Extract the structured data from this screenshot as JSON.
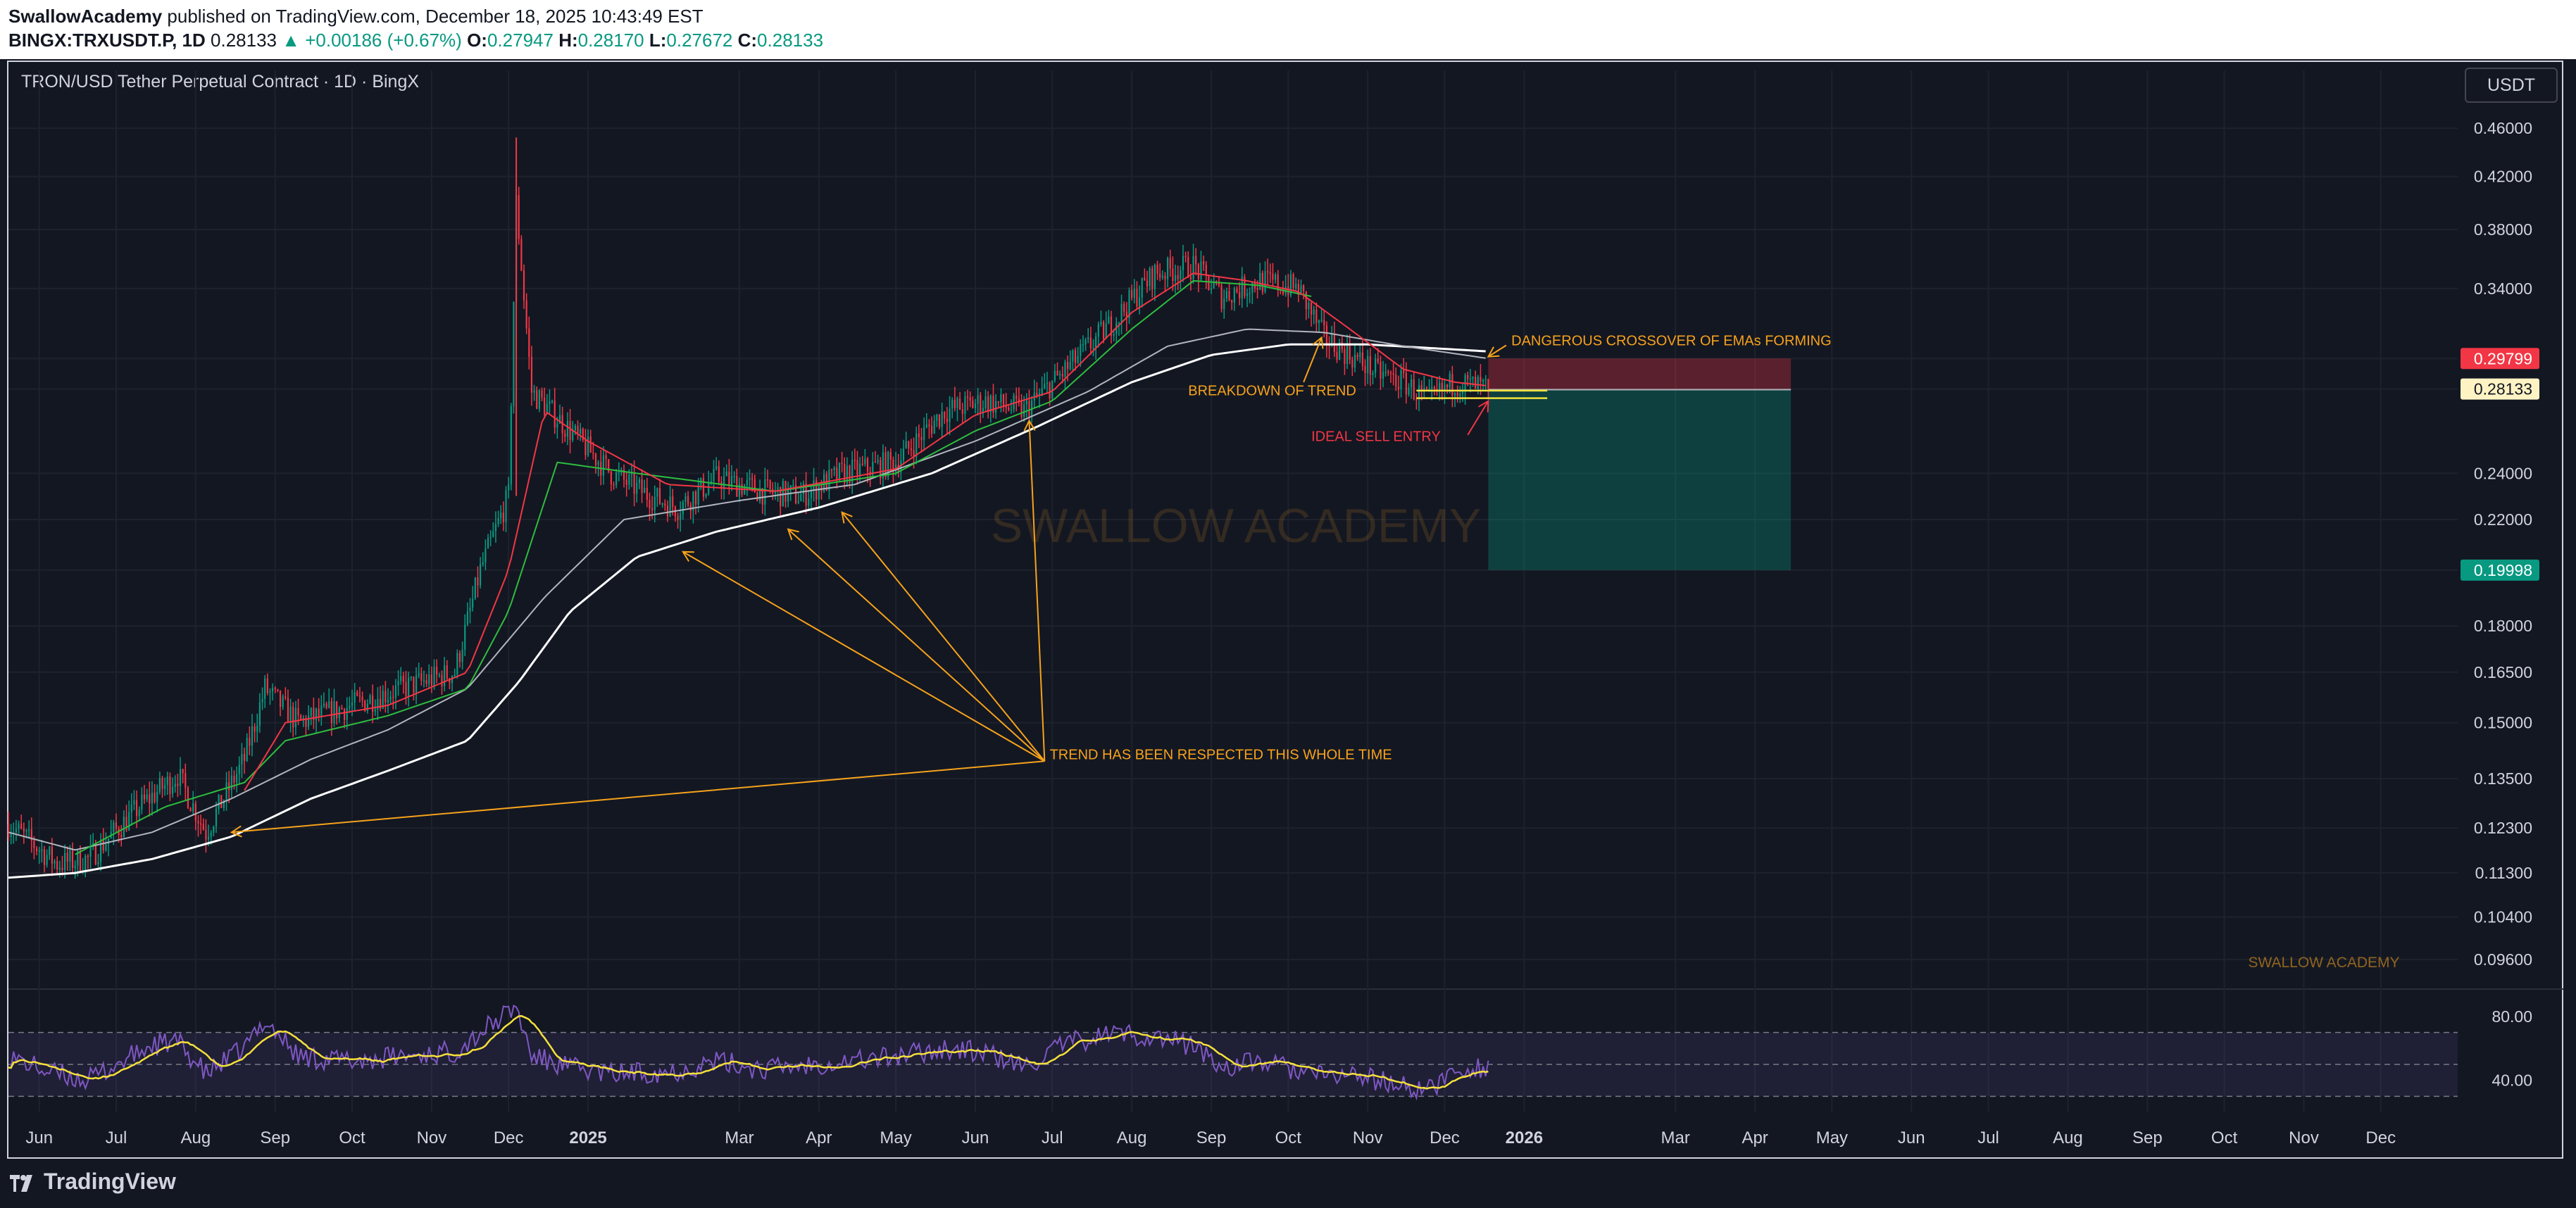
{
  "header": {
    "publisher": "SwallowAcademy",
    "published_text": " published on TradingView.com, December 18, 2025 10:43:49 EST",
    "symbol": "BINGX:TRXUSDT.P, 1D",
    "last": "0.28133",
    "change": "+0.00186 (+0.67%)",
    "o_label": "O:",
    "o": "0.27947",
    "h_label": "H:",
    "h": "0.28170",
    "l_label": "L:",
    "l": "0.27672",
    "c_label": "C:",
    "c": "0.28133"
  },
  "chart_title": "TRON/USD Tether Perpetual Contract · 1D · BingX",
  "currency_button": "USDT",
  "watermark": "SWALLOW ACADEMY",
  "watermark_small": "SWALLOW ACADEMY",
  "footer_brand": "TradingView",
  "colors": {
    "background": "#131722",
    "up": "#089981",
    "down": "#f23645",
    "annotation": "#f7a21b",
    "ema_fast": "#f23645",
    "ema_mid": "#2ebd3f",
    "ema_slow": "#ffffff",
    "rsi": "#7e57c2",
    "rsi_ma": "#f5e03c"
  },
  "chart_data": {
    "type": "candlestick",
    "scale": "log",
    "ylim": [
      0.092,
      0.48
    ],
    "xlim": [
      "2024-05-20",
      "2026-12-31"
    ],
    "y_ticks": [
      "0.46000",
      "0.42000",
      "0.38000",
      "0.34000",
      "0.29799",
      "0.28133",
      "0.24000",
      "0.22000",
      "0.19998",
      "0.18000",
      "0.16500",
      "0.15000",
      "0.13500",
      "0.12300",
      "0.11300",
      "0.10400",
      "0.09600"
    ],
    "x_ticks": [
      {
        "date": "2024-06-01",
        "label": "Jun"
      },
      {
        "date": "2024-07-01",
        "label": "Jul"
      },
      {
        "date": "2024-08-01",
        "label": "Aug"
      },
      {
        "date": "2024-09-01",
        "label": "Sep"
      },
      {
        "date": "2024-10-01",
        "label": "Oct"
      },
      {
        "date": "2024-11-01",
        "label": "Nov"
      },
      {
        "date": "2024-12-01",
        "label": "Dec"
      },
      {
        "date": "2025-01-01",
        "label": "2025"
      },
      {
        "date": "2025-03-01",
        "label": "Mar"
      },
      {
        "date": "2025-04-01",
        "label": "Apr"
      },
      {
        "date": "2025-05-01",
        "label": "May"
      },
      {
        "date": "2025-06-01",
        "label": "Jun"
      },
      {
        "date": "2025-07-01",
        "label": "Jul"
      },
      {
        "date": "2025-08-01",
        "label": "Aug"
      },
      {
        "date": "2025-09-01",
        "label": "Sep"
      },
      {
        "date": "2025-10-01",
        "label": "Oct"
      },
      {
        "date": "2025-11-01",
        "label": "Nov"
      },
      {
        "date": "2025-12-01",
        "label": "Dec"
      },
      {
        "date": "2026-01-01",
        "label": "2026"
      },
      {
        "date": "2026-03-01",
        "label": "Mar"
      },
      {
        "date": "2026-04-01",
        "label": "Apr"
      },
      {
        "date": "2026-05-01",
        "label": "May"
      },
      {
        "date": "2026-06-01",
        "label": "Jun"
      },
      {
        "date": "2026-07-01",
        "label": "Jul"
      },
      {
        "date": "2026-08-01",
        "label": "Aug"
      },
      {
        "date": "2026-09-01",
        "label": "Sep"
      },
      {
        "date": "2026-10-01",
        "label": "Oct"
      },
      {
        "date": "2026-11-01",
        "label": "Nov"
      },
      {
        "date": "2026-12-01",
        "label": "Dec"
      }
    ],
    "price_anchors": [
      [
        "2024-05-20",
        0.124
      ],
      [
        "2024-06-08",
        0.115
      ],
      [
        "2024-06-20",
        0.116
      ],
      [
        "2024-07-10",
        0.128
      ],
      [
        "2024-07-25",
        0.136
      ],
      [
        "2024-08-05",
        0.122
      ],
      [
        "2024-08-20",
        0.14
      ],
      [
        "2024-08-28",
        0.16
      ],
      [
        "2024-09-10",
        0.15
      ],
      [
        "2024-10-01",
        0.155
      ],
      [
        "2024-10-20",
        0.16
      ],
      [
        "2024-11-10",
        0.165
      ],
      [
        "2024-11-20",
        0.2
      ],
      [
        "2024-12-01",
        0.23
      ],
      [
        "2024-12-04",
        0.4
      ],
      [
        "2024-12-10",
        0.28
      ],
      [
        "2024-12-25",
        0.26
      ],
      [
        "2025-01-10",
        0.24
      ],
      [
        "2025-01-25",
        0.23
      ],
      [
        "2025-02-05",
        0.225
      ],
      [
        "2025-02-20",
        0.238
      ],
      [
        "2025-03-10",
        0.232
      ],
      [
        "2025-03-25",
        0.23
      ],
      [
        "2025-04-10",
        0.24
      ],
      [
        "2025-05-01",
        0.245
      ],
      [
        "2025-05-20",
        0.27
      ],
      [
        "2025-06-05",
        0.275
      ],
      [
        "2025-06-20",
        0.27
      ],
      [
        "2025-07-05",
        0.29
      ],
      [
        "2025-07-25",
        0.32
      ],
      [
        "2025-08-10",
        0.35
      ],
      [
        "2025-08-25",
        0.355
      ],
      [
        "2025-09-05",
        0.335
      ],
      [
        "2025-09-20",
        0.345
      ],
      [
        "2025-10-05",
        0.34
      ],
      [
        "2025-10-15",
        0.31
      ],
      [
        "2025-10-25",
        0.3
      ],
      [
        "2025-11-05",
        0.29
      ],
      [
        "2025-11-15",
        0.285
      ],
      [
        "2025-11-25",
        0.275
      ],
      [
        "2025-12-05",
        0.285
      ],
      [
        "2025-12-18",
        0.28133
      ]
    ],
    "ema_fast_anchors": [
      [
        "2024-08-20",
        0.132
      ],
      [
        "2024-09-05",
        0.15
      ],
      [
        "2024-10-15",
        0.155
      ],
      [
        "2024-11-15",
        0.165
      ],
      [
        "2024-12-01",
        0.2
      ],
      [
        "2024-12-15",
        0.27
      ],
      [
        "2025-01-01",
        0.255
      ],
      [
        "2025-02-01",
        0.235
      ],
      [
        "2025-03-15",
        0.232
      ],
      [
        "2025-05-01",
        0.242
      ],
      [
        "2025-06-01",
        0.268
      ],
      [
        "2025-07-01",
        0.28
      ],
      [
        "2025-08-01",
        0.325
      ],
      [
        "2025-08-25",
        0.35
      ],
      [
        "2025-09-15",
        0.345
      ],
      [
        "2025-10-05",
        0.338
      ],
      [
        "2025-10-25",
        0.315
      ],
      [
        "2025-11-15",
        0.292
      ],
      [
        "2025-12-05",
        0.285
      ],
      [
        "2025-12-18",
        0.283
      ]
    ],
    "ema_mid_anchors": [
      [
        "2024-06-15",
        0.117
      ],
      [
        "2024-07-20",
        0.128
      ],
      [
        "2024-08-20",
        0.134
      ],
      [
        "2024-09-05",
        0.145
      ],
      [
        "2024-10-15",
        0.152
      ],
      [
        "2024-11-15",
        0.16
      ],
      [
        "2024-12-01",
        0.185
      ],
      [
        "2024-12-20",
        0.245
      ],
      [
        "2025-01-20",
        0.24
      ],
      [
        "2025-03-15",
        0.232
      ],
      [
        "2025-05-01",
        0.24
      ],
      [
        "2025-06-01",
        0.26
      ],
      [
        "2025-07-01",
        0.275
      ],
      [
        "2025-08-01",
        0.315
      ],
      [
        "2025-08-25",
        0.345
      ],
      [
        "2025-09-20",
        0.342
      ],
      [
        "2025-10-10",
        0.335
      ]
    ],
    "ema_slow1_anchors": [
      [
        "2024-05-20",
        0.122
      ],
      [
        "2024-06-15",
        0.118
      ],
      [
        "2024-07-15",
        0.122
      ],
      [
        "2024-08-15",
        0.13
      ],
      [
        "2024-09-15",
        0.14
      ],
      [
        "2024-10-15",
        0.148
      ],
      [
        "2024-11-15",
        0.16
      ],
      [
        "2024-12-15",
        0.19
      ],
      [
        "2025-01-15",
        0.22
      ],
      [
        "2025-03-01",
        0.228
      ],
      [
        "2025-04-15",
        0.235
      ],
      [
        "2025-06-01",
        0.255
      ],
      [
        "2025-07-15",
        0.28
      ],
      [
        "2025-08-15",
        0.305
      ],
      [
        "2025-09-15",
        0.315
      ],
      [
        "2025-10-15",
        0.313
      ],
      [
        "2025-11-15",
        0.305
      ],
      [
        "2025-12-18",
        0.298
      ]
    ],
    "ema_slow2_anchors": [
      [
        "2024-05-20",
        0.112
      ],
      [
        "2024-06-15",
        0.113
      ],
      [
        "2024-07-15",
        0.116
      ],
      [
        "2024-08-15",
        0.121
      ],
      [
        "2024-09-15",
        0.13
      ],
      [
        "2024-10-15",
        0.137
      ],
      [
        "2024-11-15",
        0.145
      ],
      [
        "2024-12-05",
        0.162
      ],
      [
        "2024-12-25",
        0.185
      ],
      [
        "2025-01-20",
        0.205
      ],
      [
        "2025-02-20",
        0.215
      ],
      [
        "2025-04-01",
        0.225
      ],
      [
        "2025-05-15",
        0.24
      ],
      [
        "2025-06-25",
        0.262
      ],
      [
        "2025-08-01",
        0.285
      ],
      [
        "2025-09-01",
        0.3
      ],
      [
        "2025-10-01",
        0.306
      ],
      [
        "2025-11-01",
        0.306
      ],
      [
        "2025-12-18",
        0.302
      ]
    ],
    "position": {
      "start": "2025-12-18",
      "end": "2026-04-15",
      "stop": 0.29799,
      "entry": 0.281,
      "target": 0.19998,
      "labels": [
        "0.29799",
        "0.28133",
        "0.19998"
      ]
    },
    "rsi": {
      "levels": [
        "80.00",
        "40.00"
      ],
      "band": [
        30,
        70
      ],
      "anchors": [
        [
          "2024-05-20",
          55
        ],
        [
          "2024-06-05",
          45
        ],
        [
          "2024-06-20",
          40
        ],
        [
          "2024-07-15",
          62
        ],
        [
          "2024-07-25",
          64
        ],
        [
          "2024-08-05",
          44
        ],
        [
          "2024-08-20",
          60
        ],
        [
          "2024-08-28",
          78
        ],
        [
          "2024-09-10",
          55
        ],
        [
          "2024-10-01",
          52
        ],
        [
          "2024-10-20",
          55
        ],
        [
          "2024-11-10",
          58
        ],
        [
          "2024-11-20",
          70
        ],
        [
          "2024-12-04",
          86
        ],
        [
          "2024-12-10",
          55
        ],
        [
          "2024-12-25",
          48
        ],
        [
          "2025-01-10",
          44
        ],
        [
          "2025-02-05",
          46
        ],
        [
          "2025-02-20",
          52
        ],
        [
          "2025-03-10",
          47
        ],
        [
          "2025-04-10",
          52
        ],
        [
          "2025-05-01",
          55
        ],
        [
          "2025-05-20",
          60
        ],
        [
          "2025-06-05",
          57
        ],
        [
          "2025-06-20",
          48
        ],
        [
          "2025-07-05",
          62
        ],
        [
          "2025-07-25",
          70
        ],
        [
          "2025-08-10",
          67
        ],
        [
          "2025-08-25",
          62
        ],
        [
          "2025-09-05",
          48
        ],
        [
          "2025-09-20",
          52
        ],
        [
          "2025-10-05",
          46
        ],
        [
          "2025-10-15",
          42
        ],
        [
          "2025-10-25",
          44
        ],
        [
          "2025-11-05",
          40
        ],
        [
          "2025-11-15",
          36
        ],
        [
          "2025-11-25",
          34
        ],
        [
          "2025-12-05",
          46
        ],
        [
          "2025-12-18",
          49
        ]
      ]
    },
    "annotations": [
      {
        "text": "DANGEROUS CROSSOVER OF EMAs FORMING",
        "date": "2025-12-27",
        "price": 0.3055,
        "color": "#f7a21b"
      },
      {
        "text": "BREAKDOWN OF TREND",
        "date": "2025-08-23",
        "price": 0.278,
        "color": "#f7a21b"
      },
      {
        "text": "IDEAL SELL ENTRY",
        "date": "2025-10-10",
        "price": 0.255,
        "color": "#f23645"
      },
      {
        "text": "TREND HAS BEEN RESPECTED THIS WHOLE TIME",
        "date": "2025-06-30",
        "price": 0.14,
        "color": "#f7a21b"
      }
    ],
    "trend_arrows": [
      {
        "from": [
          "2025-06-28",
          0.1395
        ],
        "to": [
          "2024-08-15",
          0.122
        ]
      },
      {
        "from": [
          "2025-06-28",
          0.1395
        ],
        "to": [
          "2025-02-07",
          0.207
        ]
      },
      {
        "from": [
          "2025-06-28",
          0.1395
        ],
        "to": [
          "2025-03-20",
          0.216
        ]
      },
      {
        "from": [
          "2025-06-28",
          0.1395
        ],
        "to": [
          "2025-04-10",
          0.223
        ]
      },
      {
        "from": [
          "2025-06-28",
          0.1395
        ],
        "to": [
          "2025-06-22",
          0.265
        ]
      }
    ],
    "breakdown_arrow": {
      "from": [
        "2025-10-07",
        0.285
      ],
      "to": [
        "2025-10-14",
        0.31
      ]
    },
    "crossover_arrow": {
      "from": [
        "2025-12-25",
        0.3055
      ],
      "to": [
        "2025-12-18",
        0.299
      ]
    },
    "sell_arrow": {
      "from": [
        "2025-12-10",
        0.258
      ],
      "to": [
        "2025-12-18",
        0.275
      ]
    },
    "sell_lines": [
      0.2805,
      0.2765
    ]
  }
}
